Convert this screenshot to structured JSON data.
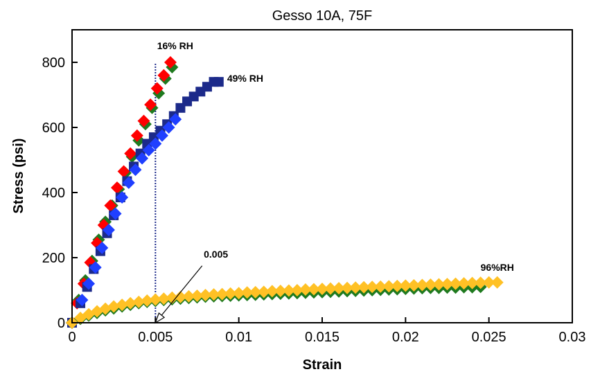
{
  "chart_data": {
    "type": "scatter",
    "title": "Gesso 10A, 75F",
    "xlabel": "Strain",
    "ylabel": "Stress (psi)",
    "xlim": [
      0,
      0.03
    ],
    "ylim": [
      0,
      900
    ],
    "x_ticks": [
      "0",
      "0.005",
      "0.01",
      "0.015",
      "0.02",
      "0.025",
      "0.03"
    ],
    "x_tick_values": [
      0,
      0.005,
      0.01,
      0.015,
      0.02,
      0.025,
      0.03
    ],
    "y_ticks": [
      "0",
      "200",
      "400",
      "600",
      "800"
    ],
    "y_tick_values": [
      0,
      200,
      400,
      600,
      800
    ],
    "grid": false,
    "legend": "none",
    "series": [
      {
        "color": "#1f7a1f",
        "marker": "diamond",
        "points": [
          [
            0,
            0
          ],
          [
            0.0004,
            70
          ],
          [
            0.0008,
            130
          ],
          [
            0.0012,
            190
          ],
          [
            0.0016,
            255
          ],
          [
            0.002,
            310
          ],
          [
            0.0024,
            360
          ],
          [
            0.0028,
            410
          ],
          [
            0.0032,
            460
          ],
          [
            0.0036,
            510
          ],
          [
            0.004,
            560
          ],
          [
            0.0044,
            610
          ],
          [
            0.0048,
            660
          ],
          [
            0.0052,
            705
          ],
          [
            0.0056,
            750
          ],
          [
            0.006,
            785
          ]
        ]
      },
      {
        "color": "#ff0000",
        "marker": "diamond",
        "points": [
          [
            0,
            0
          ],
          [
            0.0003,
            60
          ],
          [
            0.0007,
            120
          ],
          [
            0.0011,
            185
          ],
          [
            0.0015,
            245
          ],
          [
            0.0019,
            300
          ],
          [
            0.0023,
            360
          ],
          [
            0.0027,
            415
          ],
          [
            0.0031,
            465
          ],
          [
            0.0035,
            520
          ],
          [
            0.0039,
            575
          ],
          [
            0.0043,
            620
          ],
          [
            0.0047,
            670
          ],
          [
            0.0051,
            720
          ],
          [
            0.0055,
            760
          ],
          [
            0.0059,
            800
          ]
        ]
      },
      {
        "color": "#1c2a8a",
        "marker": "square",
        "points": [
          [
            0,
            0
          ],
          [
            0.0005,
            60
          ],
          [
            0.0009,
            110
          ],
          [
            0.0013,
            165
          ],
          [
            0.0017,
            220
          ],
          [
            0.0021,
            275
          ],
          [
            0.0025,
            330
          ],
          [
            0.0029,
            385
          ],
          [
            0.0033,
            435
          ],
          [
            0.0037,
            480
          ],
          [
            0.0041,
            520
          ],
          [
            0.0045,
            550
          ],
          [
            0.0049,
            570
          ],
          [
            0.0053,
            590
          ],
          [
            0.0057,
            610
          ],
          [
            0.0061,
            635
          ],
          [
            0.0065,
            660
          ],
          [
            0.0069,
            680
          ],
          [
            0.0073,
            695
          ],
          [
            0.0077,
            710
          ],
          [
            0.0081,
            725
          ],
          [
            0.0085,
            740
          ],
          [
            0.0088,
            740
          ]
        ]
      },
      {
        "color": "#1f3fff",
        "marker": "diamond",
        "points": [
          [
            0,
            0
          ],
          [
            0.0006,
            70
          ],
          [
            0.001,
            120
          ],
          [
            0.0014,
            170
          ],
          [
            0.0018,
            230
          ],
          [
            0.0022,
            285
          ],
          [
            0.0026,
            335
          ],
          [
            0.003,
            385
          ],
          [
            0.0034,
            430
          ],
          [
            0.0038,
            470
          ],
          [
            0.0042,
            505
          ],
          [
            0.0046,
            530
          ],
          [
            0.005,
            550
          ],
          [
            0.0054,
            575
          ],
          [
            0.0058,
            600
          ],
          [
            0.0062,
            625
          ]
        ]
      },
      {
        "color": "#1f7a1f",
        "marker": "diamond",
        "points": [
          [
            0,
            0
          ],
          [
            0.0005,
            12
          ],
          [
            0.001,
            22
          ],
          [
            0.0015,
            30
          ],
          [
            0.002,
            38
          ],
          [
            0.0025,
            44
          ],
          [
            0.003,
            50
          ],
          [
            0.0035,
            55
          ],
          [
            0.004,
            60
          ],
          [
            0.0045,
            64
          ],
          [
            0.005,
            67
          ],
          [
            0.0055,
            70
          ],
          [
            0.006,
            72
          ],
          [
            0.0065,
            74
          ],
          [
            0.007,
            76
          ],
          [
            0.0075,
            78
          ],
          [
            0.008,
            80
          ],
          [
            0.0085,
            81
          ],
          [
            0.009,
            82
          ],
          [
            0.0095,
            83
          ],
          [
            0.01,
            84
          ],
          [
            0.0105,
            85
          ],
          [
            0.011,
            86
          ],
          [
            0.0115,
            87
          ],
          [
            0.012,
            88
          ],
          [
            0.0125,
            89
          ],
          [
            0.013,
            90
          ],
          [
            0.0135,
            91
          ],
          [
            0.014,
            92
          ],
          [
            0.0145,
            93
          ],
          [
            0.015,
            94
          ],
          [
            0.0155,
            95
          ],
          [
            0.016,
            96
          ],
          [
            0.0165,
            97
          ],
          [
            0.017,
            98
          ],
          [
            0.0175,
            99
          ],
          [
            0.018,
            100
          ],
          [
            0.0185,
            101
          ],
          [
            0.019,
            102
          ],
          [
            0.0195,
            103
          ],
          [
            0.02,
            104
          ],
          [
            0.0205,
            105
          ],
          [
            0.021,
            106
          ],
          [
            0.0215,
            107
          ],
          [
            0.022,
            107
          ],
          [
            0.0225,
            108
          ],
          [
            0.023,
            108
          ],
          [
            0.0235,
            109
          ],
          [
            0.024,
            109
          ],
          [
            0.0245,
            110
          ]
        ]
      },
      {
        "color": "#ffc125",
        "marker": "diamond",
        "points": [
          [
            0,
            0
          ],
          [
            0.0005,
            15
          ],
          [
            0.001,
            26
          ],
          [
            0.0015,
            35
          ],
          [
            0.002,
            43
          ],
          [
            0.0025,
            50
          ],
          [
            0.003,
            55
          ],
          [
            0.0035,
            60
          ],
          [
            0.004,
            64
          ],
          [
            0.0045,
            68
          ],
          [
            0.005,
            71
          ],
          [
            0.0055,
            74
          ],
          [
            0.006,
            77
          ],
          [
            0.0065,
            79
          ],
          [
            0.007,
            81
          ],
          [
            0.0075,
            83
          ],
          [
            0.008,
            85
          ],
          [
            0.0085,
            87
          ],
          [
            0.009,
            88
          ],
          [
            0.0095,
            90
          ],
          [
            0.01,
            91
          ],
          [
            0.0105,
            93
          ],
          [
            0.011,
            94
          ],
          [
            0.0115,
            95
          ],
          [
            0.012,
            97
          ],
          [
            0.0125,
            98
          ],
          [
            0.013,
            99
          ],
          [
            0.0135,
            100
          ],
          [
            0.014,
            102
          ],
          [
            0.0145,
            103
          ],
          [
            0.015,
            104
          ],
          [
            0.0155,
            105
          ],
          [
            0.016,
            106
          ],
          [
            0.0165,
            107
          ],
          [
            0.017,
            108
          ],
          [
            0.0175,
            109
          ],
          [
            0.018,
            110
          ],
          [
            0.0185,
            111
          ],
          [
            0.019,
            112
          ],
          [
            0.0195,
            113
          ],
          [
            0.02,
            114
          ],
          [
            0.0205,
            115
          ],
          [
            0.021,
            116
          ],
          [
            0.0215,
            117
          ],
          [
            0.022,
            118
          ],
          [
            0.0225,
            119
          ],
          [
            0.023,
            120
          ],
          [
            0.0235,
            121
          ],
          [
            0.024,
            122
          ],
          [
            0.0245,
            123
          ],
          [
            0.025,
            124
          ],
          [
            0.0255,
            124
          ]
        ]
      }
    ],
    "reference_line": {
      "x": 0.005,
      "y_from": 0,
      "y_to": 800,
      "color": "#1c2a8a",
      "style": "dotted"
    },
    "annotations": [
      {
        "text": "16% RH",
        "x": 0.0051,
        "y": 840
      },
      {
        "text": "49% RH",
        "x": 0.0093,
        "y": 740
      },
      {
        "text": "96%RH",
        "x": 0.0245,
        "y": 160
      },
      {
        "text": "0.005",
        "x": 0.0079,
        "y": 200
      }
    ],
    "arrow": {
      "from": [
        0.0078,
        175
      ],
      "to": [
        0.005,
        0
      ]
    }
  }
}
